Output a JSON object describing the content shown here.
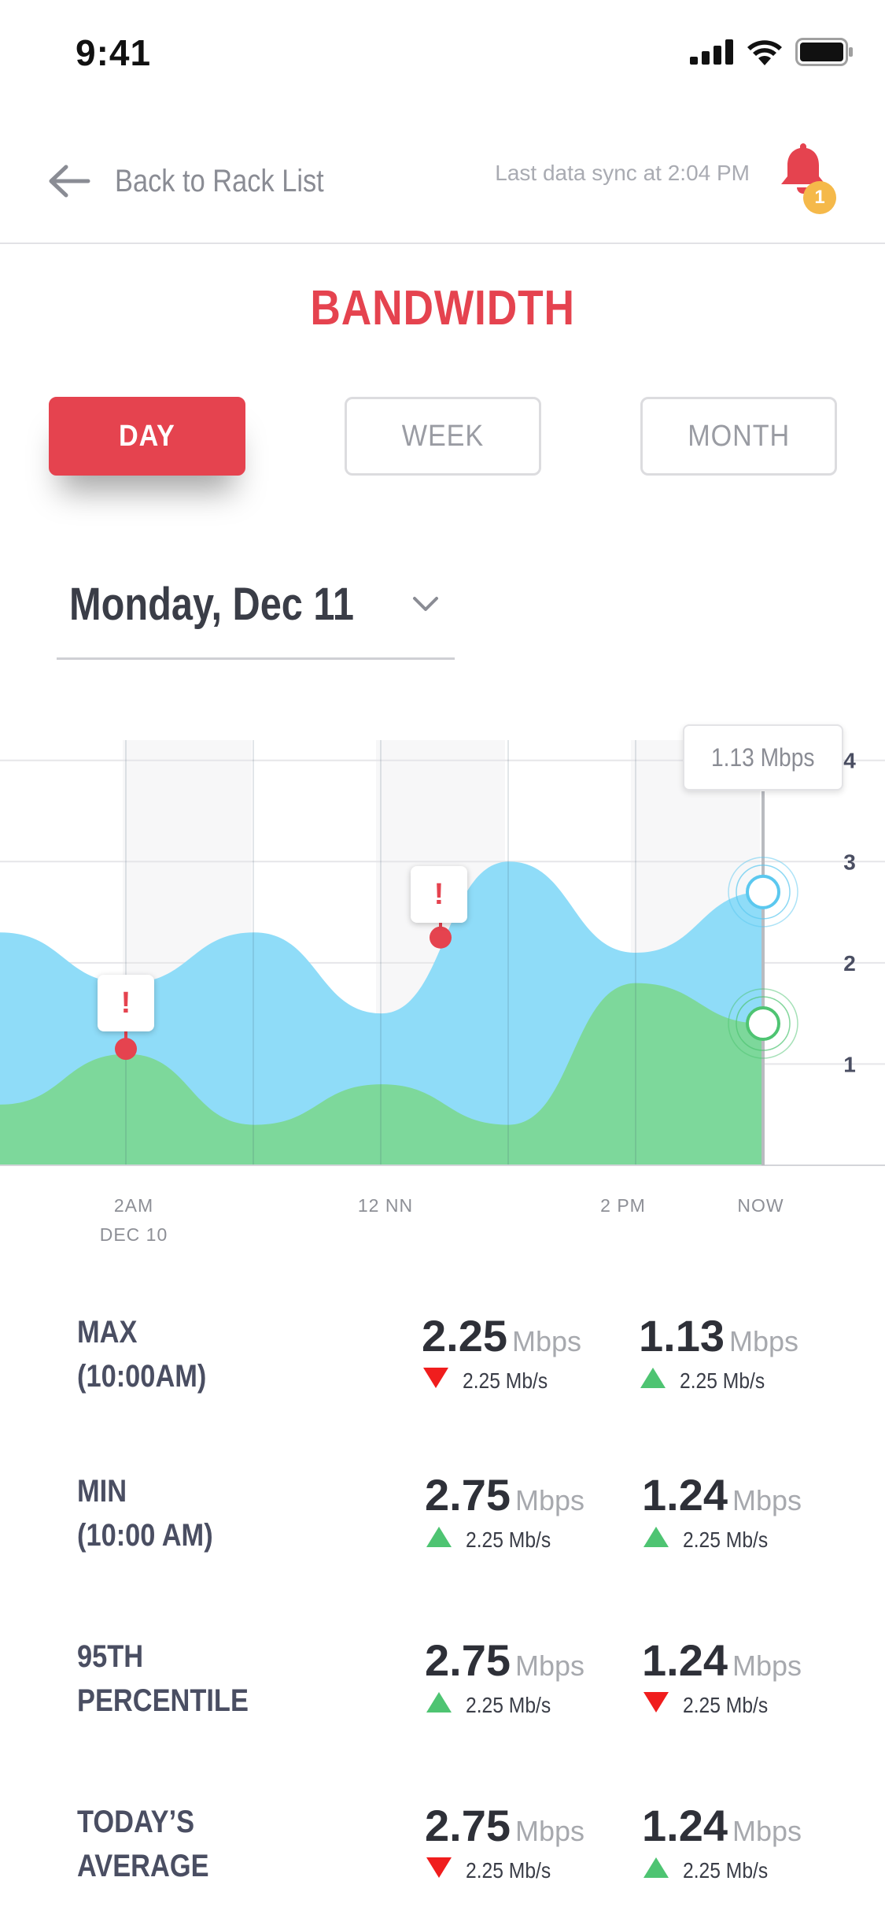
{
  "status_bar": {
    "time": "9:41"
  },
  "header": {
    "back_label": "Back to Rack List",
    "sync_text": "Last data sync at 2:04 PM",
    "notification_count": "1"
  },
  "title": "BANDWIDTH",
  "tabs": [
    {
      "label": "DAY",
      "active": true
    },
    {
      "label": "WEEK",
      "active": false
    },
    {
      "label": "MONTH",
      "active": false
    }
  ],
  "date_selector": {
    "value": "Monday, Dec 11"
  },
  "chart_data": {
    "type": "area",
    "x_ticks": [
      "2AM\nDEC 10",
      "12 NN",
      "2 PM",
      "NOW"
    ],
    "y_ticks": [
      1,
      2,
      3,
      4
    ],
    "ylim": [
      0,
      4.2
    ],
    "series": [
      {
        "color": "#8fdcf8",
        "values": [
          2.3,
          1.8,
          2.3,
          1.5,
          3.0,
          2.1,
          2.7
        ]
      },
      {
        "color": "#7dd89b",
        "values": [
          0.6,
          1.1,
          0.4,
          0.8,
          0.4,
          1.8,
          1.4
        ]
      }
    ],
    "tooltip": "1.13 Mbps",
    "alerts": [
      "!",
      "!"
    ],
    "colors": {
      "blue": "#8fdcf8",
      "green": "#7dd89b",
      "alert": "#e5434f"
    }
  },
  "stats": [
    {
      "label_line1": "MAX",
      "label_line2": "(10:00AM)",
      "a": {
        "value": "2.25",
        "unit": "Mbps",
        "trend": "down",
        "delta": "2.25 Mb/s"
      },
      "b": {
        "value": "1.13",
        "unit": "Mbps",
        "trend": "up",
        "delta": "2.25 Mb/s"
      }
    },
    {
      "label_line1": "MIN",
      "label_line2": "(10:00 AM)",
      "a": {
        "value": "2.75",
        "unit": "Mbps",
        "trend": "up",
        "delta": "2.25 Mb/s"
      },
      "b": {
        "value": "1.24",
        "unit": "Mbps",
        "trend": "up",
        "delta": "2.25 Mb/s"
      }
    },
    {
      "label_line1": "95TH",
      "label_line2": "PERCENTILE",
      "a": {
        "value": "2.75",
        "unit": "Mbps",
        "trend": "up",
        "delta": "2.25 Mb/s"
      },
      "b": {
        "value": "1.24",
        "unit": "Mbps",
        "trend": "down",
        "delta": "2.25 Mb/s"
      }
    },
    {
      "label_line1": "TODAY’S",
      "label_line2": "AVERAGE",
      "a": {
        "value": "2.75",
        "unit": "Mbps",
        "trend": "down",
        "delta": "2.25 Mb/s"
      },
      "b": {
        "value": "1.24",
        "unit": "Mbps",
        "trend": "up",
        "delta": "2.25 Mb/s"
      }
    }
  ],
  "trend_colors": {
    "up": "#4ec472",
    "down": "#f01d1d"
  }
}
